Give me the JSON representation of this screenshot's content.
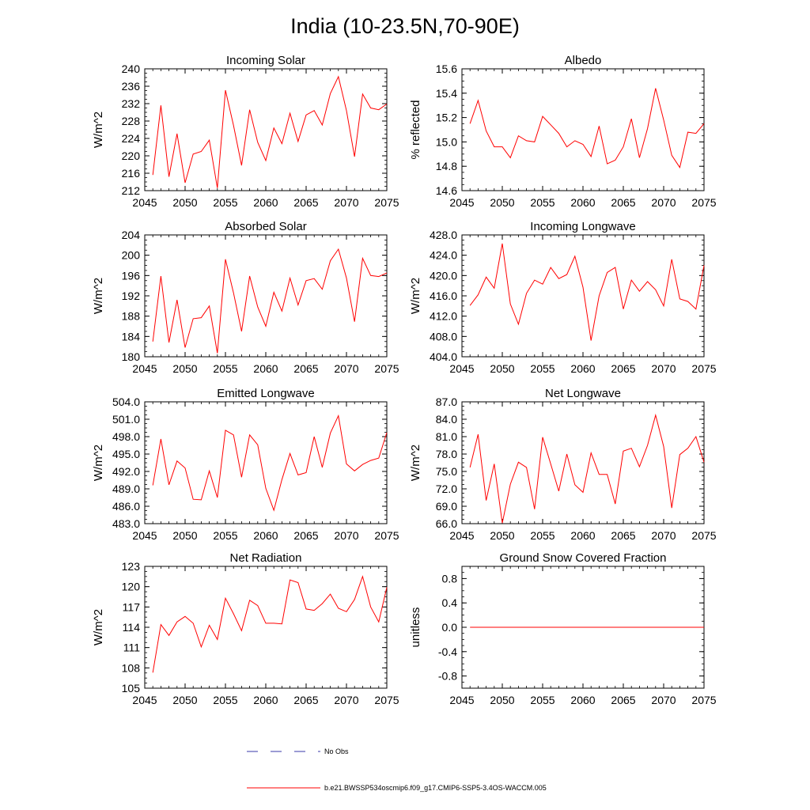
{
  "figure_title": "India (10-23.5N,70-90E)",
  "legend": [
    {
      "label": "No Obs",
      "color": "#3a3aa8",
      "style": "dashed"
    },
    {
      "label": "b.e21.BWSSP534oscmip6.f09_g17.CMIP6-SSP5-3.4OS-WACCM.005",
      "color": "#ff0000",
      "style": "solid"
    }
  ],
  "colors": {
    "series": "#ff0000",
    "axis": "#000000"
  },
  "chart_data": [
    {
      "type": "line",
      "title": "Incoming Solar",
      "ylabel": "W/m^2",
      "xlim": [
        2045,
        2075
      ],
      "ylim": [
        212,
        240
      ],
      "xticks": [
        "2045",
        "2050",
        "2055",
        "2060",
        "2065",
        "2070",
        "2075"
      ],
      "yticks": [
        "212",
        "216",
        "220",
        "224",
        "228",
        "232",
        "236",
        "240"
      ],
      "x": [
        2046,
        2047,
        2048,
        2049,
        2050,
        2051,
        2052,
        2053,
        2054,
        2055,
        2056,
        2057,
        2058,
        2059,
        2060,
        2061,
        2062,
        2063,
        2064,
        2065,
        2066,
        2067,
        2068,
        2069,
        2070,
        2071,
        2072,
        2073,
        2074,
        2075
      ],
      "series": [
        {
          "name": "b.e21.BWSSP534oscmip6.f09_g17.CMIP6-SSP5-3.4OS-WACCM.005",
          "values": [
            215.6,
            231.6,
            215.2,
            225.1,
            213.8,
            220.4,
            221.0,
            223.6,
            212.6,
            235.1,
            227.0,
            217.8,
            230.6,
            223.1,
            218.9,
            226.4,
            222.8,
            229.8,
            223.3,
            229.4,
            230.4,
            227.1,
            234.3,
            238.2,
            230.4,
            219.8,
            234.2,
            231.0,
            230.6,
            231.9
          ]
        }
      ]
    },
    {
      "type": "line",
      "title": "Albedo",
      "ylabel": "% reflected",
      "xlim": [
        2045,
        2075
      ],
      "ylim": [
        14.6,
        15.6
      ],
      "xticks": [
        "2045",
        "2050",
        "2055",
        "2060",
        "2065",
        "2070",
        "2075"
      ],
      "yticks": [
        "14.6",
        "14.8",
        "15.0",
        "15.2",
        "15.4",
        "15.6"
      ],
      "x": [
        2046,
        2047,
        2048,
        2049,
        2050,
        2051,
        2052,
        2053,
        2054,
        2055,
        2056,
        2057,
        2058,
        2059,
        2060,
        2061,
        2062,
        2063,
        2064,
        2065,
        2066,
        2067,
        2068,
        2069,
        2070,
        2071,
        2072,
        2073,
        2074,
        2075
      ],
      "series": [
        {
          "name": "b.e21.BWSSP534oscmip6.f09_g17.CMIP6-SSP5-3.4OS-WACCM.005",
          "values": [
            15.15,
            15.34,
            15.09,
            14.96,
            14.96,
            14.87,
            15.05,
            15.01,
            15.0,
            15.21,
            15.14,
            15.07,
            14.96,
            15.01,
            14.98,
            14.88,
            15.13,
            14.82,
            14.85,
            14.96,
            15.19,
            14.87,
            15.11,
            15.44,
            15.18,
            14.89,
            14.79,
            15.08,
            15.07,
            15.15
          ]
        }
      ]
    },
    {
      "type": "line",
      "title": "Absorbed Solar",
      "ylabel": "W/m^2",
      "xlim": [
        2045,
        2075
      ],
      "ylim": [
        180,
        204
      ],
      "xticks": [
        "2045",
        "2050",
        "2055",
        "2060",
        "2065",
        "2070",
        "2075"
      ],
      "yticks": [
        "180",
        "184",
        "188",
        "192",
        "196",
        "200",
        "204"
      ],
      "x": [
        2046,
        2047,
        2048,
        2049,
        2050,
        2051,
        2052,
        2053,
        2054,
        2055,
        2056,
        2057,
        2058,
        2059,
        2060,
        2061,
        2062,
        2063,
        2064,
        2065,
        2066,
        2067,
        2068,
        2069,
        2070,
        2071,
        2072,
        2073,
        2074,
        2075
      ],
      "series": [
        {
          "name": "b.e21.BWSSP534oscmip6.f09_g17.CMIP6-SSP5-3.4OS-WACCM.005",
          "values": [
            183.0,
            195.9,
            182.8,
            191.2,
            181.8,
            187.5,
            187.7,
            190.0,
            180.7,
            199.2,
            192.6,
            185.0,
            195.9,
            189.8,
            186.0,
            192.7,
            189.0,
            195.5,
            190.2,
            195.0,
            195.4,
            193.3,
            198.9,
            201.2,
            195.5,
            186.9,
            199.4,
            196.0,
            195.8,
            196.5
          ]
        }
      ]
    },
    {
      "type": "line",
      "title": "Incoming Longwave",
      "ylabel": "W/m^2",
      "xlim": [
        2045,
        2075
      ],
      "ylim": [
        404.0,
        428.0
      ],
      "xticks": [
        "2045",
        "2050",
        "2055",
        "2060",
        "2065",
        "2070",
        "2075"
      ],
      "yticks": [
        "404.0",
        "408.0",
        "412.0",
        "416.0",
        "420.0",
        "424.0",
        "428.0"
      ],
      "x": [
        2046,
        2047,
        2048,
        2049,
        2050,
        2051,
        2052,
        2053,
        2054,
        2055,
        2056,
        2057,
        2058,
        2059,
        2060,
        2061,
        2062,
        2063,
        2064,
        2065,
        2066,
        2067,
        2068,
        2069,
        2070,
        2071,
        2072,
        2073,
        2074,
        2075
      ],
      "series": [
        {
          "name": "b.e21.BWSSP534oscmip6.f09_g17.CMIP6-SSP5-3.4OS-WACCM.005",
          "values": [
            414.1,
            416.2,
            419.7,
            417.5,
            426.3,
            414.4,
            410.4,
            416.5,
            419.1,
            418.3,
            421.6,
            419.4,
            420.2,
            423.8,
            417.7,
            407.2,
            416.0,
            420.6,
            421.6,
            413.4,
            419.1,
            416.9,
            418.8,
            417.2,
            414.0,
            423.2,
            415.4,
            414.9,
            413.4,
            422.0
          ]
        }
      ]
    },
    {
      "type": "line",
      "title": "Emitted Longwave",
      "ylabel": "W/m^2",
      "xlim": [
        2045,
        2075
      ],
      "ylim": [
        483.0,
        504.0
      ],
      "xticks": [
        "2045",
        "2050",
        "2055",
        "2060",
        "2065",
        "2070",
        "2075"
      ],
      "yticks": [
        "483.0",
        "486.0",
        "489.0",
        "492.0",
        "495.0",
        "498.0",
        "501.0",
        "504.0"
      ],
      "x": [
        2046,
        2047,
        2048,
        2049,
        2050,
        2051,
        2052,
        2053,
        2054,
        2055,
        2056,
        2057,
        2058,
        2059,
        2060,
        2061,
        2062,
        2063,
        2064,
        2065,
        2066,
        2067,
        2068,
        2069,
        2070,
        2071,
        2072,
        2073,
        2074,
        2075
      ],
      "series": [
        {
          "name": "b.e21.BWSSP534oscmip6.f09_g17.CMIP6-SSP5-3.4OS-WACCM.005",
          "values": [
            489.6,
            497.6,
            489.7,
            493.8,
            492.6,
            487.2,
            487.1,
            492.1,
            487.5,
            499.1,
            498.3,
            491.0,
            498.3,
            496.6,
            489.1,
            485.3,
            490.6,
            495.1,
            491.4,
            491.8,
            498.0,
            492.7,
            498.6,
            501.6,
            493.3,
            492.1,
            493.2,
            493.9,
            494.3,
            498.7
          ]
        }
      ]
    },
    {
      "type": "line",
      "title": "Net Longwave",
      "ylabel": "W/m^2",
      "xlim": [
        2045,
        2075
      ],
      "ylim": [
        66.0,
        87.0
      ],
      "xticks": [
        "2045",
        "2050",
        "2055",
        "2060",
        "2065",
        "2070",
        "2075"
      ],
      "yticks": [
        "66.0",
        "69.0",
        "72.0",
        "75.0",
        "78.0",
        "81.0",
        "84.0",
        "87.0"
      ],
      "x": [
        2046,
        2047,
        2048,
        2049,
        2050,
        2051,
        2052,
        2053,
        2054,
        2055,
        2056,
        2057,
        2058,
        2059,
        2060,
        2061,
        2062,
        2063,
        2064,
        2065,
        2066,
        2067,
        2068,
        2069,
        2070,
        2071,
        2072,
        2073,
        2074,
        2075
      ],
      "series": [
        {
          "name": "b.e21.BWSSP534oscmip6.f09_g17.CMIP6-SSP5-3.4OS-WACCM.005",
          "values": [
            75.7,
            81.4,
            70.0,
            76.3,
            66.1,
            72.8,
            76.6,
            75.7,
            68.5,
            80.9,
            76.3,
            71.6,
            78.0,
            72.7,
            71.4,
            78.2,
            74.5,
            74.5,
            69.4,
            78.5,
            79.0,
            75.8,
            79.5,
            84.7,
            79.3,
            68.7,
            77.9,
            79.0,
            81.0,
            76.6
          ]
        }
      ]
    },
    {
      "type": "line",
      "title": "Net Radiation",
      "ylabel": "W/m^2",
      "xlim": [
        2045,
        2075
      ],
      "ylim": [
        105,
        123
      ],
      "xticks": [
        "2045",
        "2050",
        "2055",
        "2060",
        "2065",
        "2070",
        "2075"
      ],
      "yticks": [
        "105",
        "108",
        "111",
        "114",
        "117",
        "120",
        "123"
      ],
      "x": [
        2046,
        2047,
        2048,
        2049,
        2050,
        2051,
        2052,
        2053,
        2054,
        2055,
        2056,
        2057,
        2058,
        2059,
        2060,
        2061,
        2062,
        2063,
        2064,
        2065,
        2066,
        2067,
        2068,
        2069,
        2070,
        2071,
        2072,
        2073,
        2074,
        2075
      ],
      "series": [
        {
          "name": "b.e21.BWSSP534oscmip6.f09_g17.CMIP6-SSP5-3.4OS-WACCM.005",
          "values": [
            107.3,
            114.4,
            112.8,
            114.8,
            115.6,
            114.6,
            111.1,
            114.3,
            112.2,
            118.3,
            116.0,
            113.5,
            118.0,
            117.2,
            114.6,
            114.6,
            114.5,
            121.0,
            120.6,
            116.7,
            116.5,
            117.5,
            118.9,
            116.8,
            116.3,
            118.1,
            121.5,
            117.0,
            114.8,
            119.9
          ]
        }
      ]
    },
    {
      "type": "line",
      "title": "Ground Snow Covered Fraction",
      "ylabel": "unitless",
      "xlim": [
        2045,
        2075
      ],
      "ylim": [
        -1.0,
        1.0
      ],
      "xticks": [
        "2045",
        "2050",
        "2055",
        "2060",
        "2065",
        "2070",
        "2075"
      ],
      "yticks": [
        "-0.8",
        "-0.4",
        "0.0",
        "0.4",
        "0.8"
      ],
      "ytick_values": [
        -0.8,
        -0.4,
        0.0,
        0.4,
        0.8
      ],
      "x": [
        2046,
        2047,
        2048,
        2049,
        2050,
        2051,
        2052,
        2053,
        2054,
        2055,
        2056,
        2057,
        2058,
        2059,
        2060,
        2061,
        2062,
        2063,
        2064,
        2065,
        2066,
        2067,
        2068,
        2069,
        2070,
        2071,
        2072,
        2073,
        2074,
        2075
      ],
      "series": [
        {
          "name": "b.e21.BWSSP534oscmip6.f09_g17.CMIP6-SSP5-3.4OS-WACCM.005",
          "values": [
            0,
            0,
            0,
            0,
            0,
            0,
            0,
            0,
            0,
            0,
            0,
            0,
            0,
            0,
            0,
            0,
            0,
            0,
            0,
            0,
            0,
            0,
            0,
            0,
            0,
            0,
            0,
            0,
            0,
            0
          ]
        }
      ]
    }
  ]
}
